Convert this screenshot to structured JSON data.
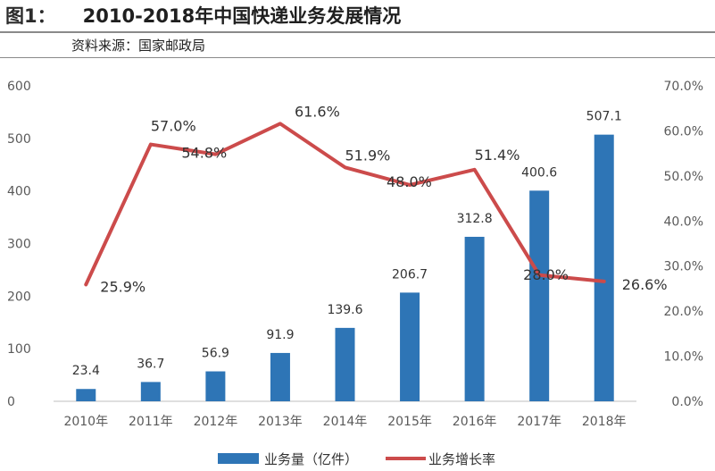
{
  "header": {
    "figure_label": "图1：",
    "title": "2010-2018年中国快递业务发展情况",
    "source": "资料来源：国家邮政局"
  },
  "chart_data": {
    "type": "bar",
    "categories": [
      "2010年",
      "2011年",
      "2012年",
      "2013年",
      "2014年",
      "2015年",
      "2016年",
      "2017年",
      "2018年"
    ],
    "series": [
      {
        "name": "业务量（亿件）",
        "type": "bar",
        "axis": "left",
        "color": "#2e75b6",
        "values": [
          23.4,
          36.7,
          56.9,
          91.9,
          139.6,
          206.7,
          312.8,
          400.6,
          507.1
        ],
        "labels": [
          "23.4",
          "36.7",
          "56.9",
          "91.9",
          "139.6",
          "206.7",
          "312.8",
          "400.6",
          "507.1"
        ]
      },
      {
        "name": "业务增长率",
        "type": "line",
        "axis": "right",
        "color": "#cc4b4b",
        "values": [
          25.9,
          57.0,
          54.8,
          61.6,
          51.9,
          48.0,
          51.4,
          28.0,
          26.6
        ],
        "labels": [
          "25.9%",
          "57.0%",
          "54.8%",
          "61.6%",
          "51.9%",
          "48.0%",
          "51.4%",
          "28.0%",
          "26.6%"
        ]
      }
    ],
    "y_left": {
      "ylim": [
        0,
        600
      ],
      "ticks": [
        "0",
        "100",
        "200",
        "300",
        "400",
        "500",
        "600"
      ]
    },
    "y_right": {
      "ylim": [
        0,
        70
      ],
      "ticks": [
        "0.0%",
        "10.0%",
        "20.0%",
        "30.0%",
        "40.0%",
        "50.0%",
        "60.0%",
        "70.0%"
      ]
    },
    "grid": false,
    "legend_position": "bottom-center"
  }
}
